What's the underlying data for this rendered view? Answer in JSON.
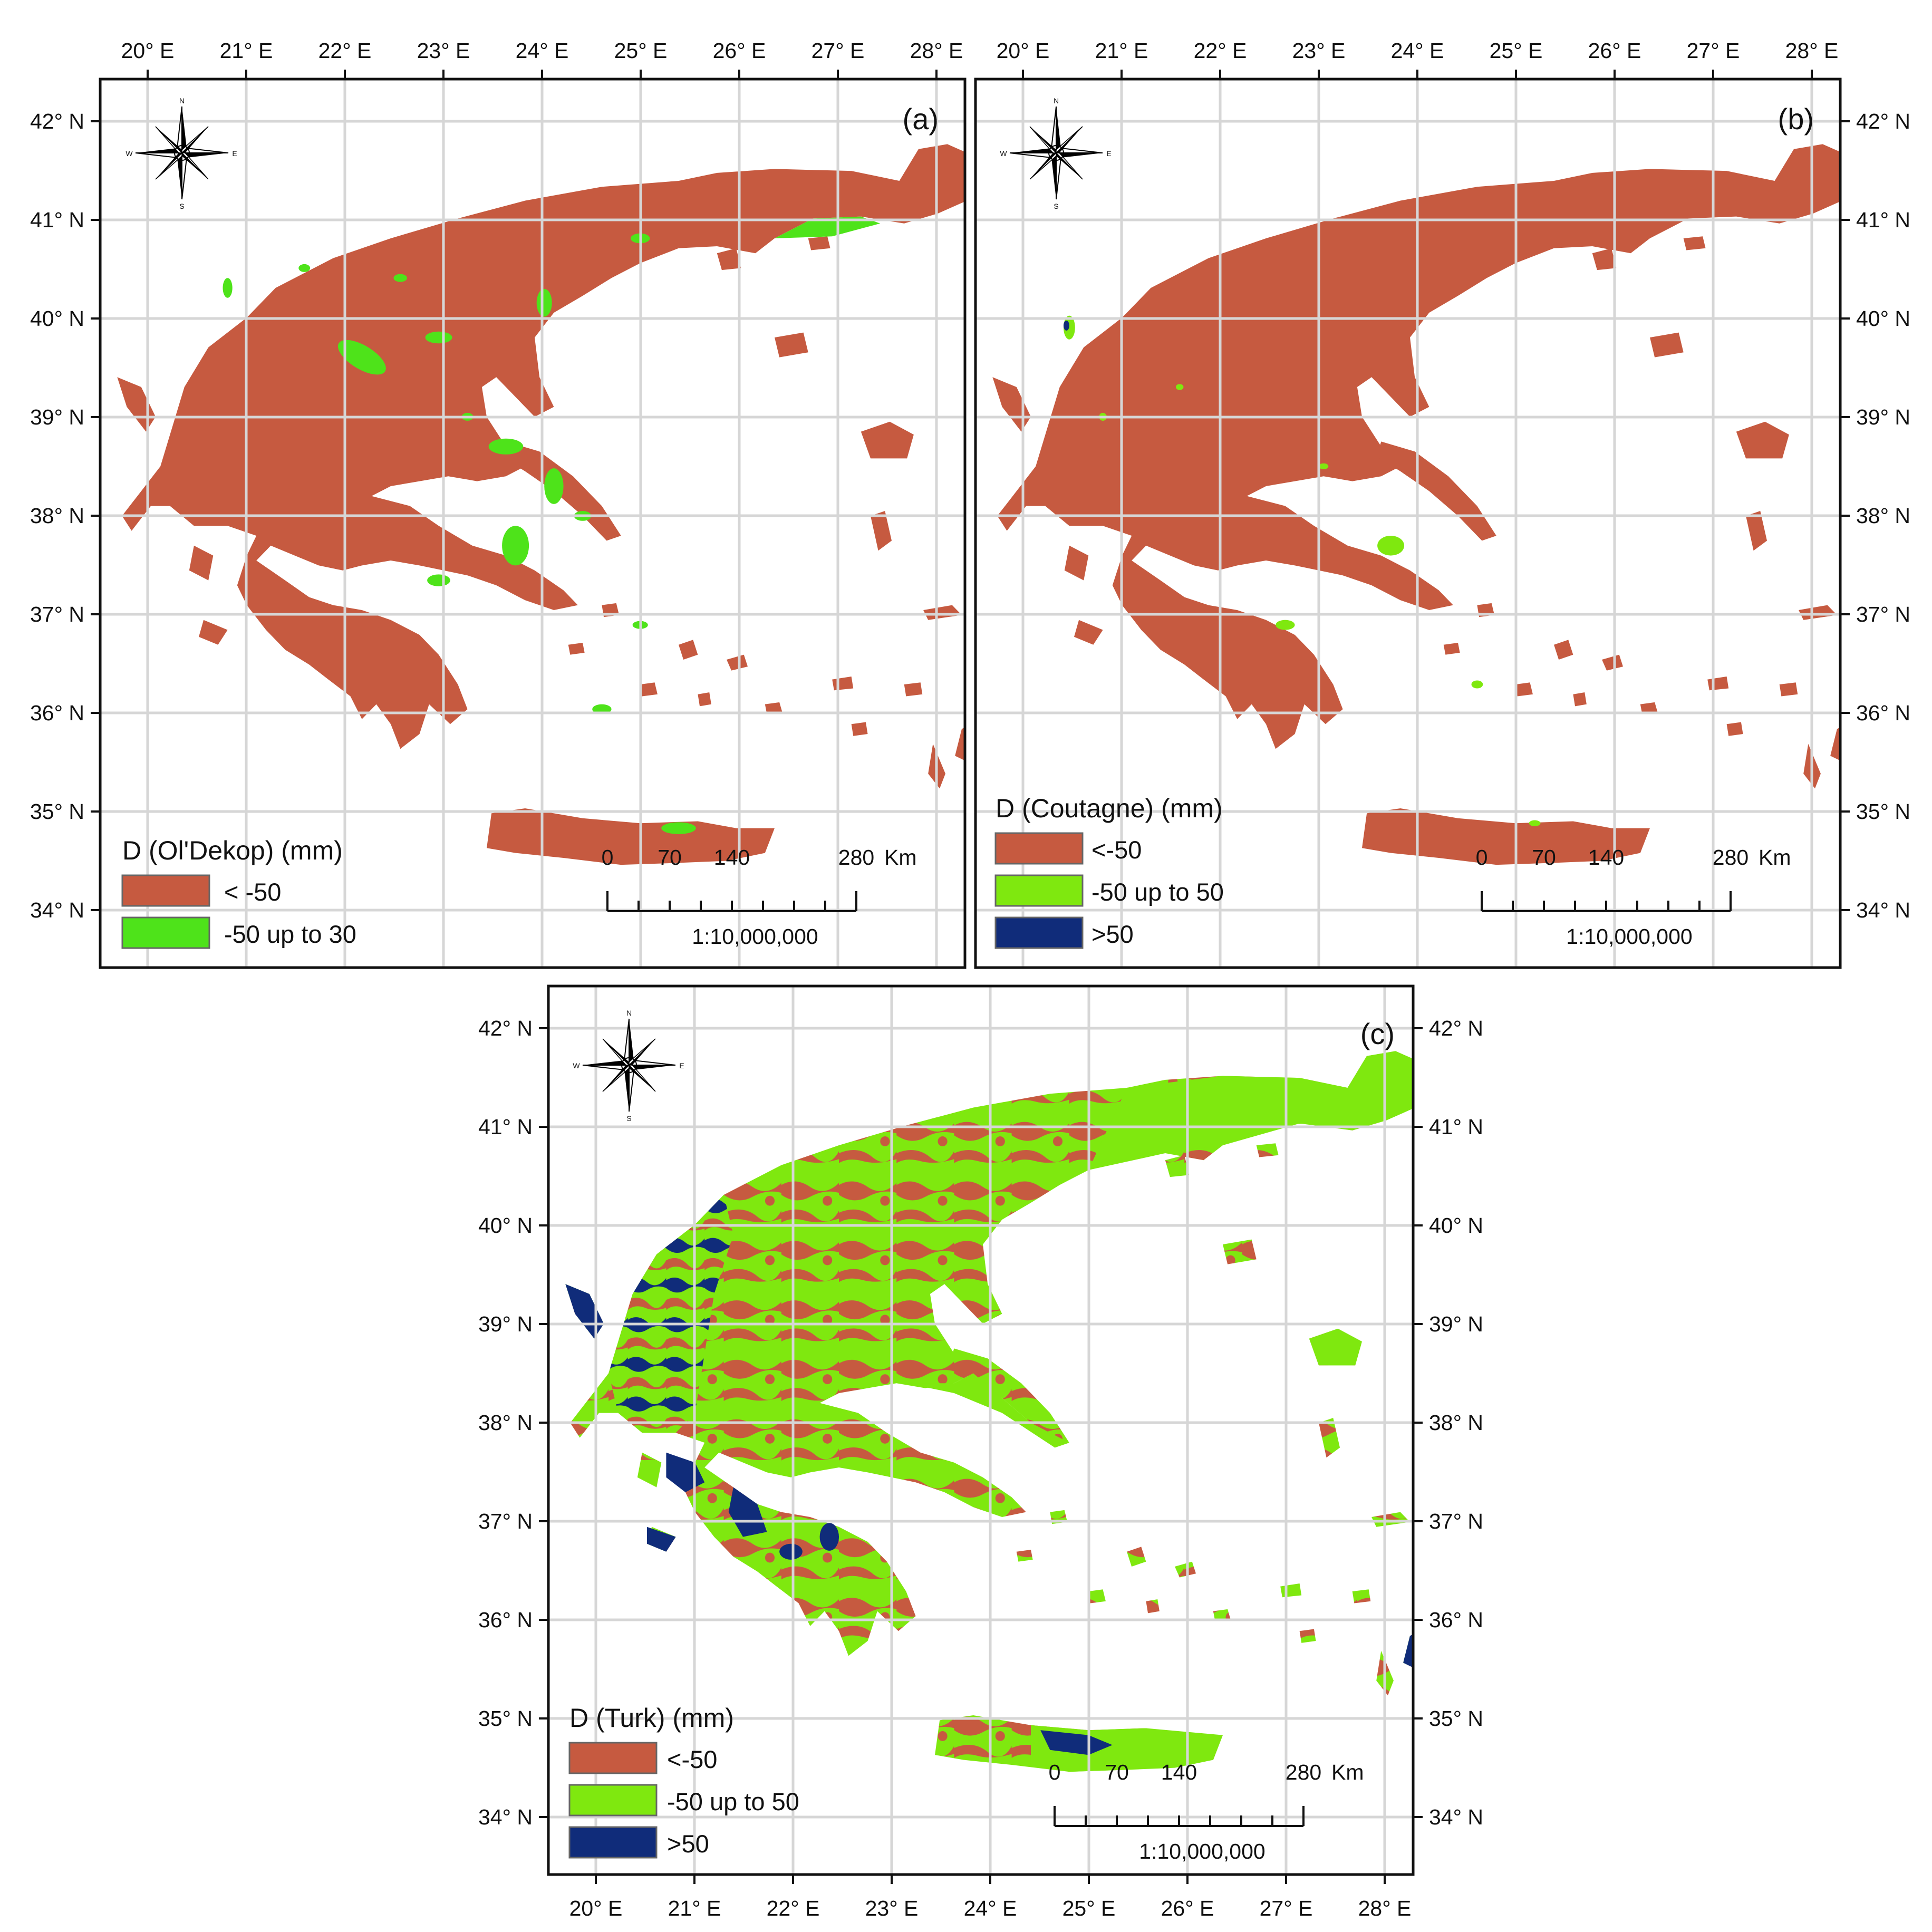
{
  "panels": [
    {
      "id": "a",
      "label": "(a)",
      "legend_title": "D (Ol'Dekop) (mm)",
      "classes": [
        {
          "label": "< -50",
          "color": "#c65a40"
        },
        {
          "label": "-50 up to 30",
          "color": "#4ee31a"
        }
      ]
    },
    {
      "id": "b",
      "label": "(b)",
      "legend_title": "D (Coutagne) (mm)",
      "classes": [
        {
          "label": "<-50",
          "color": "#c65a40"
        },
        {
          "label": "-50 up to 50",
          "color": "#7fe80f"
        },
        {
          "label": ">50",
          "color": "#102c7a"
        }
      ]
    },
    {
      "id": "c",
      "label": "(c)",
      "legend_title": "D (Turk) (mm)",
      "classes": [
        {
          "label": "<-50",
          "color": "#c65a40"
        },
        {
          "label": "-50 up to 50",
          "color": "#7fe80f"
        },
        {
          "label": ">50",
          "color": "#102c7a"
        }
      ]
    }
  ],
  "lon_ticks": [
    "20° E",
    "21° E",
    "22° E",
    "23° E",
    "24° E",
    "25° E",
    "26° E",
    "27° E",
    "28° E"
  ],
  "lat_ticks": [
    "42° N",
    "41° N",
    "40° N",
    "39° N",
    "38° N",
    "37° N",
    "36° N",
    "35° N",
    "34° N"
  ],
  "scale_bar": {
    "labels": [
      "0",
      "70",
      "140",
      "280"
    ],
    "unit": "Km",
    "ratio": "1:10,000,000"
  },
  "compass": {
    "n": "N",
    "s": "S",
    "e": "E",
    "w": "W"
  },
  "colors": {
    "frame": "#111111",
    "grid": "#d6d6d6",
    "sea": "#ffffff"
  }
}
